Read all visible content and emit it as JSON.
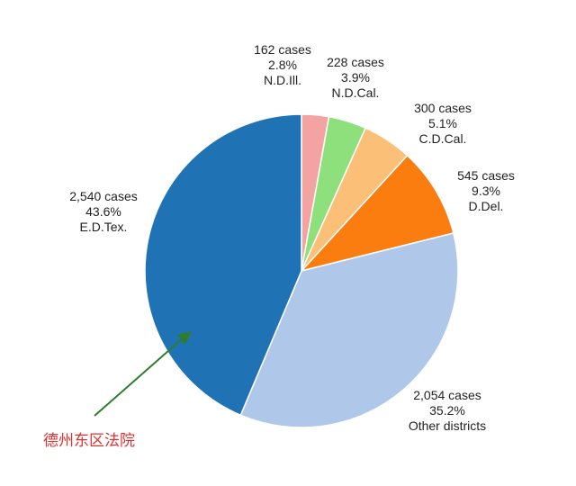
{
  "chart_data": {
    "type": "pie",
    "title": "",
    "start_angle_deg": 0,
    "direction": "clockwise",
    "slices": [
      {
        "label": "N.D.Ill.",
        "cases": 162,
        "cases_text": "162 cases",
        "percent": 2.8,
        "percent_text": "2.8%",
        "color": "#f4a3a3"
      },
      {
        "label": "N.D.Cal.",
        "cases": 228,
        "cases_text": "228 cases",
        "percent": 3.9,
        "percent_text": "3.9%",
        "color": "#8ee07c"
      },
      {
        "label": "C.D.Cal.",
        "cases": 300,
        "cases_text": "300 cases",
        "percent": 5.1,
        "percent_text": "5.1%",
        "color": "#fbbf78"
      },
      {
        "label": "D.Del.",
        "cases": 545,
        "cases_text": "545 cases",
        "percent": 9.3,
        "percent_text": "9.3%",
        "color": "#fb7d10"
      },
      {
        "label": "Other districts",
        "cases": 2054,
        "cases_text": "2,054 cases",
        "percent": 35.2,
        "percent_text": "35.2%",
        "color": "#afc8ea"
      },
      {
        "label": "E.D.Tex.",
        "cases": 2540,
        "cases_text": "2,540 cases",
        "percent": 43.6,
        "percent_text": "43.6%",
        "color": "#1f73b4"
      }
    ]
  },
  "annotation": {
    "text": "德州东区法院",
    "color": "#e03030",
    "arrow_color": "#2e7d2e"
  }
}
